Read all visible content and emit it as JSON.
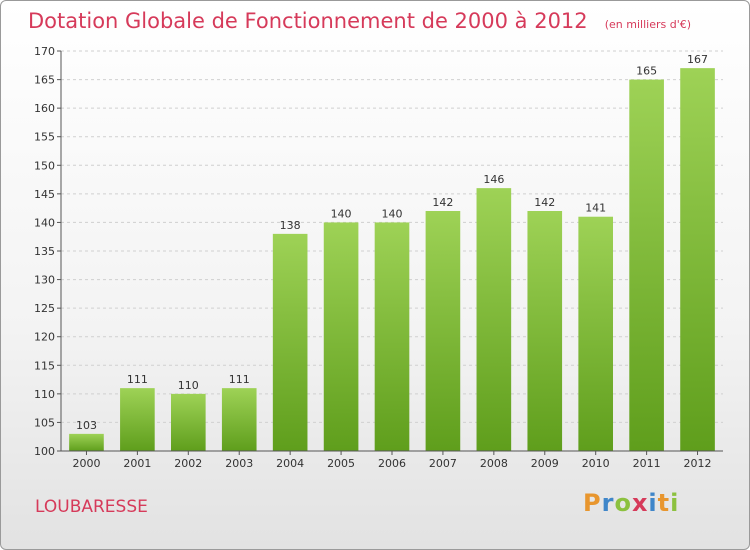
{
  "chart_data": {
    "type": "bar",
    "title": "Dotation Globale de Fonctionnement de 2000 à 2012",
    "subtitle": "(en milliers d'€)",
    "categories": [
      "2000",
      "2001",
      "2002",
      "2003",
      "2004",
      "2005",
      "2006",
      "2007",
      "2008",
      "2009",
      "2010",
      "2011",
      "2012"
    ],
    "values": [
      103,
      111,
      110,
      111,
      138,
      140,
      140,
      142,
      146,
      142,
      141,
      165,
      167
    ],
    "ylim": [
      100,
      170
    ],
    "yticks": [
      100,
      105,
      110,
      115,
      120,
      125,
      130,
      135,
      140,
      145,
      150,
      155,
      160,
      165,
      170
    ],
    "grid": true,
    "bar_color": "#7fbf3a"
  },
  "commune": "LOUBARESSE",
  "logo": "Proxiti"
}
